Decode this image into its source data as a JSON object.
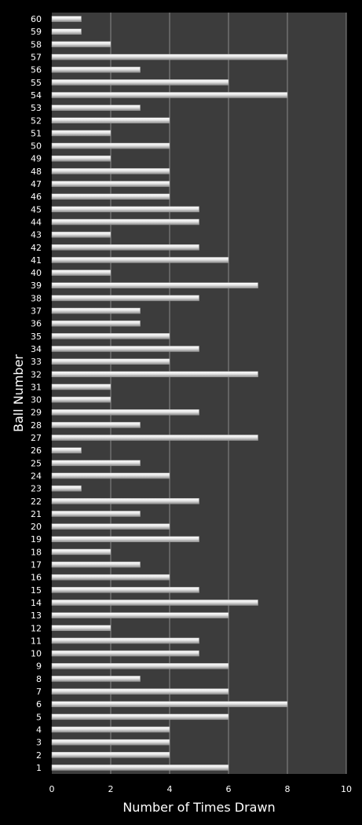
{
  "chart_data": {
    "type": "bar",
    "orientation": "horizontal",
    "xlabel": "Number of Times Drawn",
    "ylabel": "Ball Number",
    "xlim": [
      0,
      10
    ],
    "xticks": [
      "0",
      "2",
      "4",
      "6",
      "8",
      "10"
    ],
    "grid": "vertical",
    "legend": "none",
    "categories": [
      "1",
      "2",
      "3",
      "4",
      "5",
      "6",
      "7",
      "8",
      "9",
      "10",
      "11",
      "12",
      "13",
      "14",
      "15",
      "16",
      "17",
      "18",
      "19",
      "20",
      "21",
      "22",
      "23",
      "24",
      "25",
      "26",
      "27",
      "28",
      "29",
      "30",
      "31",
      "32",
      "33",
      "34",
      "35",
      "36",
      "37",
      "38",
      "39",
      "40",
      "41",
      "42",
      "43",
      "44",
      "45",
      "46",
      "47",
      "48",
      "49",
      "50",
      "51",
      "52",
      "53",
      "54",
      "55",
      "56",
      "57",
      "58",
      "59",
      "60"
    ],
    "values": [
      6,
      4,
      4,
      4,
      6,
      8,
      6,
      3,
      6,
      5,
      5,
      2,
      6,
      7,
      5,
      4,
      3,
      2,
      5,
      4,
      3,
      5,
      1,
      4,
      3,
      1,
      7,
      3,
      5,
      2,
      2,
      7,
      4,
      5,
      4,
      3,
      3,
      5,
      7,
      2,
      6,
      5,
      2,
      5,
      5,
      4,
      4,
      4,
      2,
      4,
      2,
      4,
      3,
      8,
      6,
      3,
      8,
      2,
      1,
      1
    ],
    "colors": {
      "background": "#000000",
      "plot_area": "#3c3c3c",
      "grid": "#8a8a8a",
      "bar": "#e6e6e6",
      "text": "#ffffff"
    }
  }
}
